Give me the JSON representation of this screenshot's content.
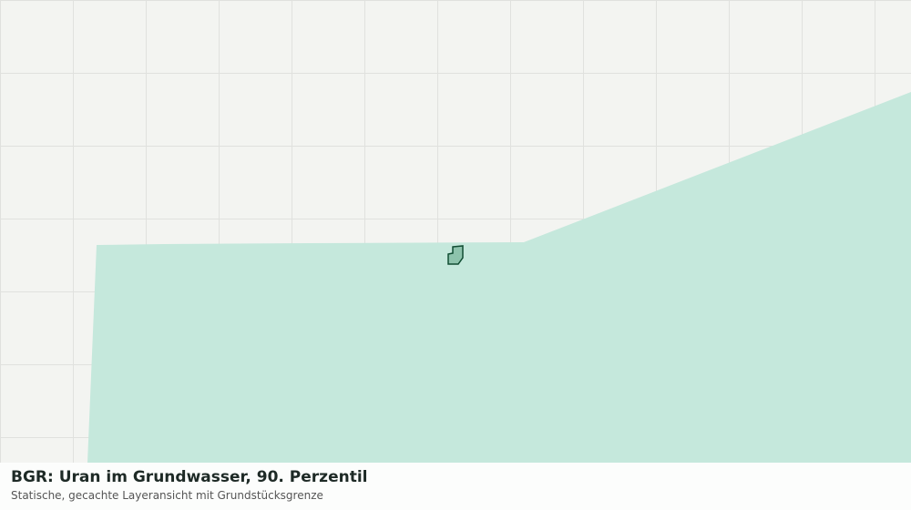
{
  "title": "BGR: Uran im Grundwasser, 90. Perzentil",
  "subtitle": "Statische, gecachte Layeransicht mit Grundstücksgrenze"
}
